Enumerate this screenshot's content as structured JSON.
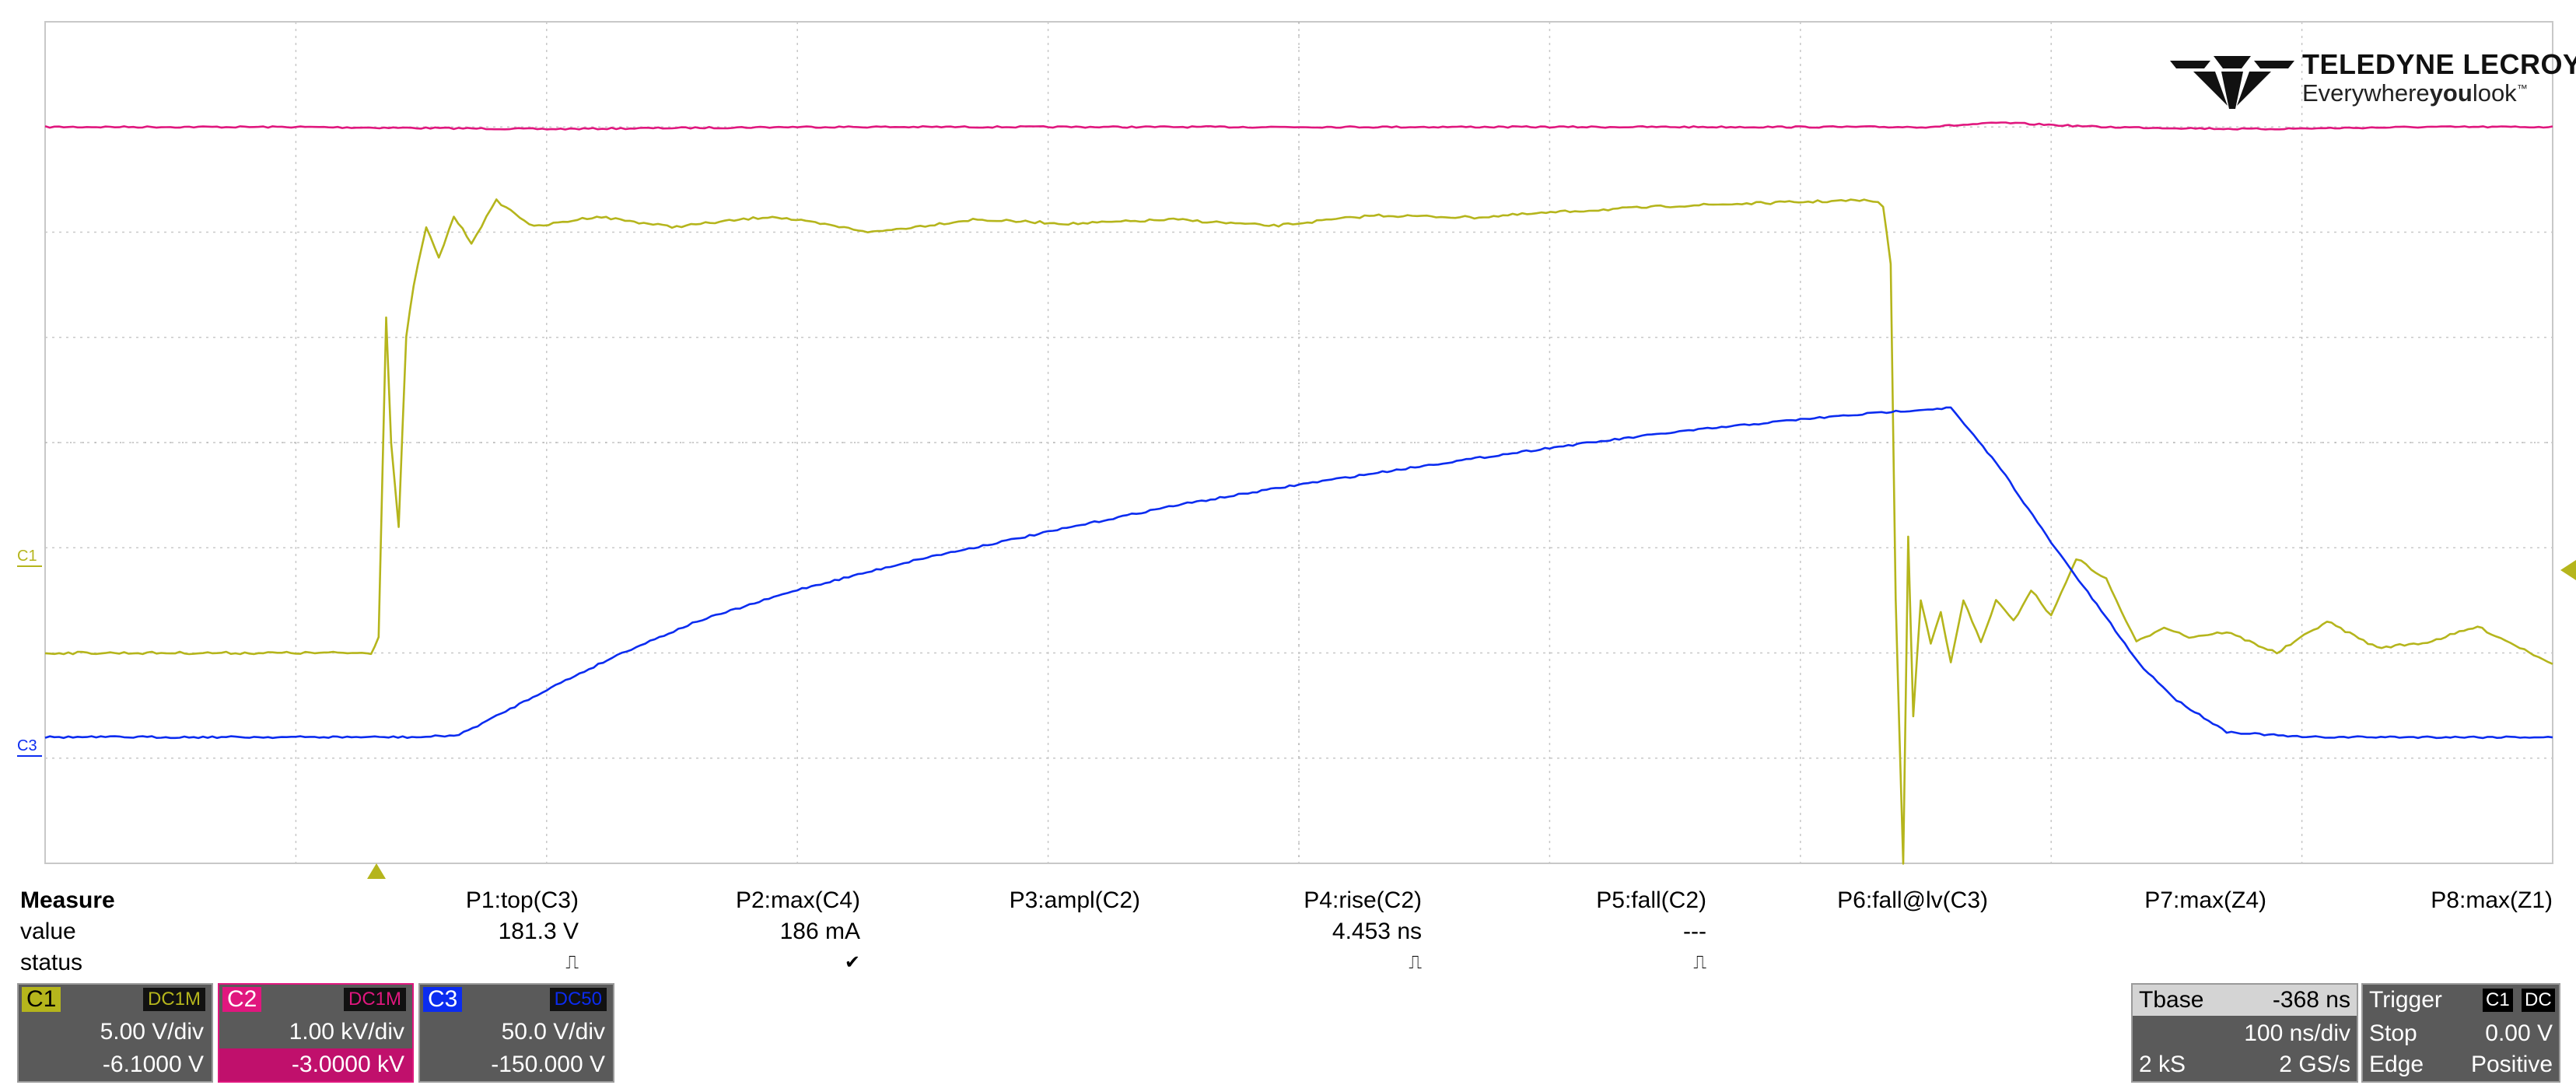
{
  "brand": {
    "name": "TELEDYNE LECROY",
    "tagline_pre": "Everywhere",
    "tagline_bold": "you",
    "tagline_post": "look",
    "tm": "™"
  },
  "colors": {
    "c1": "#b5b51c",
    "c2": "#e0177e",
    "c3": "#0b2cf0",
    "grid": "#c8c8c8",
    "panel": "#5a5a5a"
  },
  "channel_markers": {
    "c1": "C1",
    "c3": "C3"
  },
  "measure": {
    "title": "Measure",
    "row_value": "value",
    "row_status": "status",
    "params": [
      {
        "name": "P1:top(C3)",
        "value": "181.3 V",
        "status": "⎍"
      },
      {
        "name": "P2:max(C4)",
        "value": "186 mA",
        "status": "✔"
      },
      {
        "name": "P3:ampl(C2)",
        "value": "",
        "status": ""
      },
      {
        "name": "P4:rise(C2)",
        "value": "4.453 ns",
        "status": "⎍"
      },
      {
        "name": "P5:fall(C2)",
        "value": "---",
        "status": "⎍"
      },
      {
        "name": "P6:fall@lv(C3)",
        "value": "",
        "status": ""
      },
      {
        "name": "P7:max(Z4)",
        "value": "",
        "status": ""
      },
      {
        "name": "P8:max(Z1)",
        "value": "",
        "status": ""
      }
    ]
  },
  "channels": [
    {
      "id": "C1",
      "coupling": "DC1M",
      "vdiv": "5.00 V/div",
      "offset": "-6.1000 V"
    },
    {
      "id": "C2",
      "coupling": "DC1M",
      "vdiv": "1.00 kV/div",
      "offset": "-3.0000 kV"
    },
    {
      "id": "C3",
      "coupling": "DC50",
      "vdiv": "50.0 V/div",
      "offset": "-150.000 V"
    }
  ],
  "timebase": {
    "label": "Tbase",
    "delay": "-368 ns",
    "tdiv": "100 ns/div",
    "samples": "2 kS",
    "rate": "2 GS/s"
  },
  "trigger": {
    "label": "Trigger",
    "src": "C1",
    "coupling": "DC",
    "mode": "Stop",
    "level": "0.00 V",
    "type": "Edge",
    "slope": "Positive"
  },
  "chart_data": {
    "type": "line",
    "title": "",
    "xlabel": "",
    "ylabel": "",
    "grid": true,
    "x_divisions": 10,
    "y_divisions": 8,
    "xlim": [
      0,
      10
    ],
    "ylim": [
      -4,
      4
    ],
    "x_unit": "div",
    "y_unit": "div",
    "series": [
      {
        "name": "C2",
        "x": [
          0,
          1,
          2,
          3,
          4,
          5,
          6,
          7,
          7.5,
          7.8,
          8.2,
          8.8,
          9.5,
          10
        ],
        "y": [
          3.0,
          3.0,
          2.98,
          3.0,
          3.0,
          3.0,
          3.0,
          3.0,
          3.0,
          3.04,
          3.0,
          2.98,
          3.0,
          3.0
        ]
      },
      {
        "name": "C1",
        "x": [
          0,
          1.0,
          1.3,
          1.33,
          1.36,
          1.38,
          1.41,
          1.44,
          1.47,
          1.52,
          1.57,
          1.63,
          1.7,
          1.8,
          1.95,
          2.2,
          2.5,
          2.9,
          3.3,
          3.7,
          4.1,
          4.5,
          4.9,
          5.3,
          5.7,
          6.1,
          6.5,
          6.9,
          7.2,
          7.29,
          7.33,
          7.36,
          7.38,
          7.41,
          7.43,
          7.45,
          7.48,
          7.52,
          7.56,
          7.6,
          7.65,
          7.72,
          7.78,
          7.85,
          7.92,
          8.0,
          8.1,
          8.22,
          8.34,
          8.45,
          8.55,
          8.7,
          8.9,
          9.1,
          9.3,
          9.5,
          9.7,
          10.0
        ],
        "y": [
          -2.0,
          -2.0,
          -2.0,
          -1.85,
          1.2,
          0.0,
          -0.8,
          1.0,
          1.5,
          2.05,
          1.75,
          2.15,
          1.9,
          2.3,
          2.05,
          2.15,
          2.05,
          2.15,
          2.0,
          2.12,
          2.08,
          2.12,
          2.06,
          2.16,
          2.14,
          2.2,
          2.25,
          2.28,
          2.3,
          2.3,
          2.25,
          1.7,
          -1.5,
          -4.0,
          -0.9,
          -2.6,
          -1.5,
          -1.9,
          -1.6,
          -2.1,
          -1.5,
          -1.9,
          -1.5,
          -1.7,
          -1.4,
          -1.65,
          -1.1,
          -1.3,
          -1.9,
          -1.75,
          -1.85,
          -1.8,
          -2.0,
          -1.7,
          -1.95,
          -1.9,
          -1.75,
          -2.1
        ]
      },
      {
        "name": "C3",
        "x": [
          0,
          1.0,
          1.5,
          1.65,
          1.8,
          2.0,
          2.3,
          2.6,
          3.0,
          3.5,
          4.0,
          4.5,
          5.0,
          5.5,
          6.0,
          6.5,
          7.0,
          7.4,
          7.6,
          7.8,
          8.0,
          8.2,
          8.35,
          8.5,
          8.7,
          9.0,
          9.5,
          10.0
        ],
        "y": [
          -2.8,
          -2.8,
          -2.8,
          -2.78,
          -2.6,
          -2.35,
          -2.0,
          -1.7,
          -1.4,
          -1.1,
          -0.85,
          -0.6,
          -0.4,
          -0.22,
          -0.05,
          0.1,
          0.22,
          0.3,
          0.33,
          -0.25,
          -0.95,
          -1.6,
          -2.1,
          -2.45,
          -2.75,
          -2.8,
          -2.8,
          -2.8
        ]
      }
    ]
  }
}
